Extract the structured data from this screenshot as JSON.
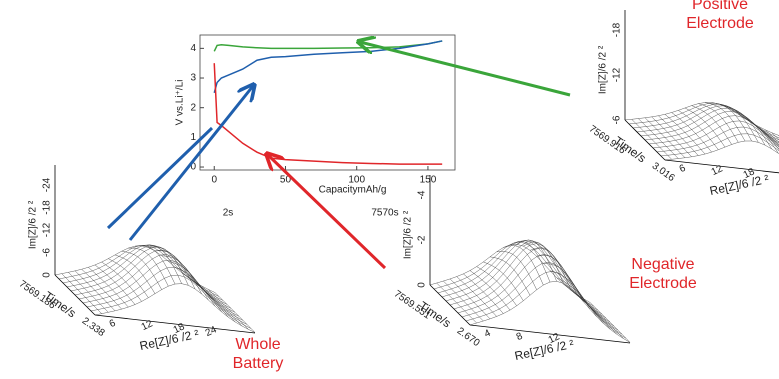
{
  "chart_data": {
    "type": "line",
    "x_label": "CapacitymAh/g",
    "y_label": "V vs.Li⁺/Li",
    "x": [
      0,
      2,
      5,
      10,
      20,
      30,
      40,
      50,
      70,
      90,
      110,
      130,
      150,
      160
    ],
    "series": [
      {
        "color": "#3aa53a",
        "values": [
          3.9,
          4.1,
          4.12,
          4.1,
          4.05,
          4.02,
          4.0,
          4.0,
          4.0,
          4.01,
          4.02,
          4.05,
          4.15,
          4.25
        ]
      },
      {
        "color": "#1f5fad",
        "values": [
          2.5,
          2.85,
          3.0,
          3.1,
          3.3,
          3.6,
          3.7,
          3.72,
          3.8,
          3.85,
          3.9,
          4.0,
          4.15,
          4.25
        ]
      },
      {
        "color": "#e0262a",
        "values": [
          3.5,
          1.5,
          1.4,
          1.2,
          0.8,
          0.5,
          0.3,
          0.25,
          0.2,
          0.15,
          0.12,
          0.1,
          0.1,
          0.1
        ]
      }
    ],
    "xlim": [
      -10,
      169
    ],
    "ylim": [
      -0.1,
      4.45
    ],
    "xticks": [
      0,
      50,
      100,
      150
    ],
    "yticks": [
      0,
      1,
      2,
      3,
      4
    ],
    "annotations": [
      "2s",
      "7570s"
    ]
  },
  "surfaces": [
    {
      "label": [
        "Whole",
        "Battery"
      ],
      "y_label": "Im[Z]/6 /2 ²",
      "yticks": [
        "0",
        "-6",
        "-12",
        "-18",
        "-24"
      ],
      "time_label": "Time/s",
      "time_ticks": [
        "7569.186",
        "2.338"
      ],
      "x_label": "Re[Z]/6 /2 ²",
      "xticks": [
        "6",
        "12",
        "18",
        "24"
      ]
    },
    {
      "label": [
        "Positive",
        "Electrode"
      ],
      "y_label": "Im[Z]/6 /2 ²",
      "yticks": [
        "-6",
        "-12",
        "-18"
      ],
      "time_label": "Time/s",
      "time_ticks": [
        "7569.916",
        "3.016"
      ],
      "x_label": "Re[Z]/6 /2 ²",
      "xticks": [
        "6",
        "12",
        "18"
      ]
    },
    {
      "label": [
        "Negative",
        "Electrode"
      ],
      "y_label": "Im[Z]/6 /2 ²",
      "yticks": [
        "0",
        "-2",
        "-4"
      ],
      "time_label": "Time/s",
      "time_ticks": [
        "7569.551",
        "2.670"
      ],
      "x_label": "Re[Z]/6 /2 ²",
      "xticks": [
        "4",
        "8",
        "12"
      ]
    }
  ]
}
